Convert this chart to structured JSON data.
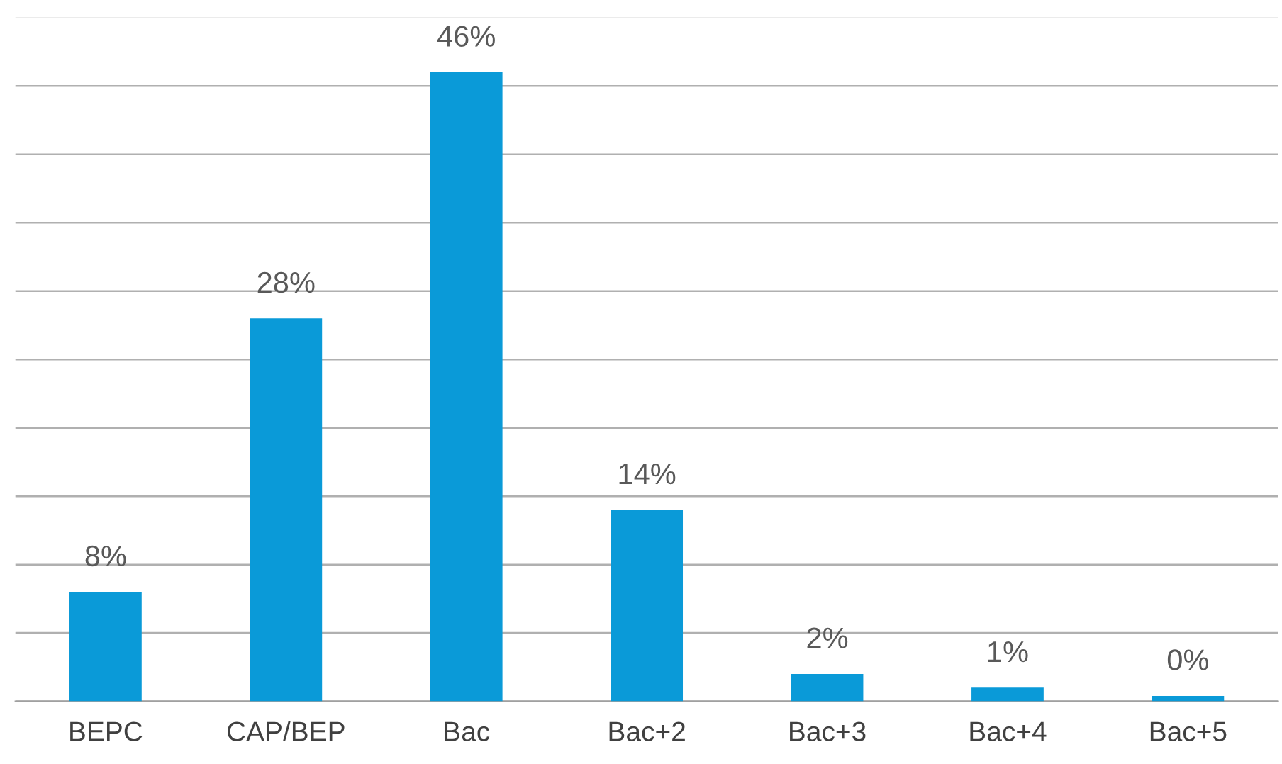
{
  "chart_data": {
    "type": "bar",
    "categories": [
      "BEPC",
      "CAP/BEP",
      "Bac",
      "Bac+2",
      "Bac+3",
      "Bac+4",
      "Bac+5"
    ],
    "values": [
      8,
      28,
      46,
      14,
      2,
      1,
      0.4
    ],
    "value_labels": [
      "8%",
      "28%",
      "46%",
      "14%",
      "2%",
      "1%",
      "0%"
    ],
    "color": "#0a9ad8",
    "ylim": [
      0,
      50
    ],
    "yticks": [
      {
        "value": 0,
        "label": null
      },
      {
        "value": 5,
        "label": null
      },
      {
        "value": 10,
        "label": null
      },
      {
        "value": 15,
        "label": null
      },
      {
        "value": 20,
        "label": null
      },
      {
        "value": 25,
        "label": null
      },
      {
        "value": 30,
        "label": null
      },
      {
        "value": 35,
        "label": null
      },
      {
        "value": 40,
        "label": null
      },
      {
        "value": 45,
        "label": null
      },
      {
        "value": 50,
        "label": null
      }
    ],
    "grid": "y",
    "tick_labels": "x",
    "legend": false
  }
}
